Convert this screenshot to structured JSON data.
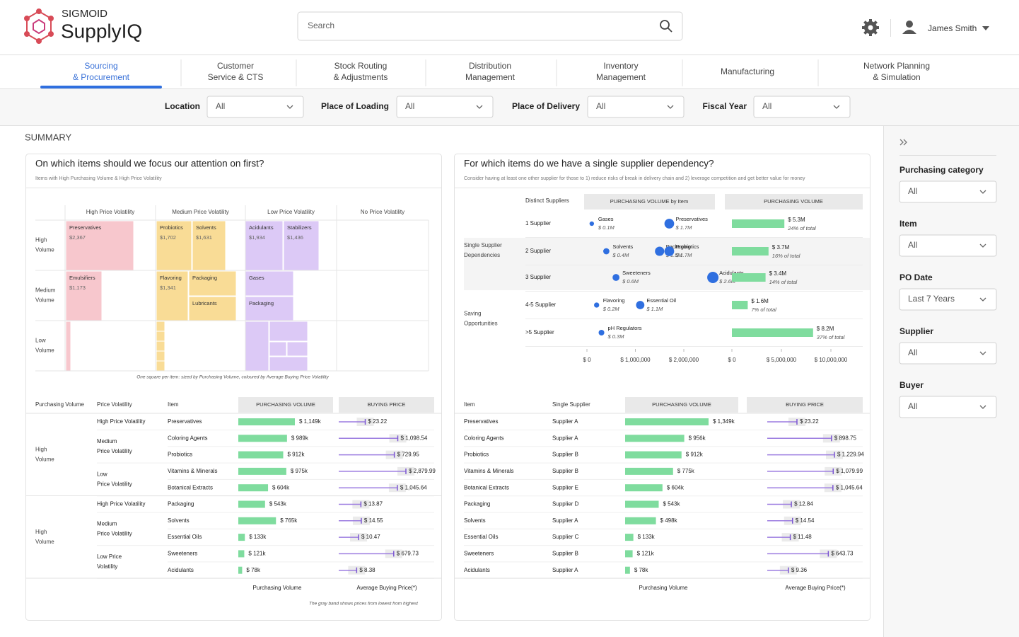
{
  "header": {
    "brand_company": "SIGMOID",
    "brand_product": "SupplyIQ",
    "search_placeholder": "Search",
    "user_name": "James Smith"
  },
  "tabs": [
    {
      "lines": [
        "Sourcing",
        "& Procurement"
      ],
      "active": true
    },
    {
      "lines": [
        "Customer",
        "Service & CTS"
      ]
    },
    {
      "lines": [
        "Stock Routing",
        "& Adjustments"
      ]
    },
    {
      "lines": [
        "Distribution",
        "Management"
      ]
    },
    {
      "lines": [
        "Inventory",
        "Management"
      ]
    },
    {
      "lines": [
        "Manufacturing"
      ]
    },
    {
      "lines": [
        "Network Planning",
        "& Simulation"
      ]
    }
  ],
  "filters": [
    {
      "label": "Location",
      "value": "All"
    },
    {
      "label": "Place of Loading",
      "value": "All"
    },
    {
      "label": "Place of Delivery",
      "value": "All"
    },
    {
      "label": "Fiscal Year",
      "value": "All"
    }
  ],
  "summary": {
    "title": "SUMMARY"
  },
  "focus_panel": {
    "title": "On which items should we focus our attention on first?",
    "subtitle": "Items with High Purchasing Volume & High Price Volatility",
    "matrix": {
      "columns": [
        "High Price Volatility",
        "Medium Price Volatility",
        "Low Price Volatility",
        "No Price Volatility"
      ],
      "rows": [
        [
          "High",
          "Volume"
        ],
        [
          "Medium",
          "Volume"
        ],
        [
          "Low",
          "Volume"
        ]
      ],
      "cells": [
        {
          "label": "Preservatives",
          "value": "$2,367"
        },
        {
          "label": "Probiotics",
          "value": "$1,702"
        },
        {
          "label": "Solvents",
          "value": "$1,631"
        },
        {
          "label": "Acidulants",
          "value": "$1,934"
        },
        {
          "label": "Stabilizers",
          "value": "$1,436"
        },
        {
          "label": "Emulsifiers",
          "value": "$1,173"
        },
        {
          "label": "Flavoring",
          "value": "$1,341"
        },
        {
          "label": "Packaging"
        },
        {
          "label": "Lubricants"
        },
        {
          "label": "Gases"
        },
        {
          "label": "Packaging"
        }
      ],
      "caption": "One square per item: sized by Purchasing Volume, coloured by Average Buying Price Volatility"
    },
    "table": {
      "headers": [
        "Purchasing Volume",
        "Price Volatility",
        "Item",
        "PURCHASING VOLUME",
        "BUYING PRICE"
      ],
      "groups": [
        {
          "label": [
            "High",
            "Volume"
          ],
          "volatilities": [
            {
              "label": [
                "High Price Volatility"
              ],
              "rows": [
                {
                  "item": "Preservatives",
                  "volume": 1149,
                  "volume_label": "$ 1,149k",
                  "price": 23.22,
                  "price_label": "$ 23.22"
                }
              ]
            },
            {
              "label": [
                "Medium",
                "Price Volatility"
              ],
              "rows": [
                {
                  "item": "Coloring Agents",
                  "volume": 989,
                  "volume_label": "$ 989k",
                  "price": 1098.54,
                  "price_label": "$ 1,098.54"
                },
                {
                  "item": "Probiotics",
                  "volume": 912,
                  "volume_label": "$ 912k",
                  "price": 729.95,
                  "price_label": "$ 729.95"
                }
              ]
            },
            {
              "label": [
                "Low",
                "Price Volatility"
              ],
              "rows": [
                {
                  "item": "Vitamins & Minerals",
                  "volume": 975,
                  "volume_label": "$ 975k",
                  "price": 2879.99,
                  "price_label": "$ 2,879.99"
                },
                {
                  "item": "Botanical Extracts",
                  "volume": 604,
                  "volume_label": "$ 604k",
                  "price": 1045.64,
                  "price_label": "$ 1,045.64"
                }
              ]
            }
          ]
        },
        {
          "label": [
            "High",
            "Volume"
          ],
          "volatilities": [
            {
              "label": [
                "High Price Volatility"
              ],
              "rows": [
                {
                  "item": "Packaging",
                  "volume": 543,
                  "volume_label": "$ 543k",
                  "price": 13.87,
                  "price_label": "$ 13.87"
                }
              ]
            },
            {
              "label": [
                "Medium",
                "Price Volatility"
              ],
              "rows": [
                {
                  "item": "Solvents",
                  "volume": 765,
                  "volume_label": "$ 765k",
                  "price": 14.55,
                  "price_label": "$ 14.55"
                },
                {
                  "item": "Essential Oils",
                  "volume": 133,
                  "volume_label": "$ 133k",
                  "price": 10.47,
                  "price_label": "$ 10.47"
                }
              ]
            },
            {
              "label": [
                "Low Price",
                "Volatility"
              ],
              "rows": [
                {
                  "item": "Sweeteners",
                  "volume": 121,
                  "volume_label": "$ 121k",
                  "price": 679.73,
                  "price_label": "$ 679.73"
                },
                {
                  "item": "Acidulants",
                  "volume": 78,
                  "volume_label": "$ 78k",
                  "price": 8.38,
                  "price_label": "$ 8.38"
                }
              ]
            }
          ]
        }
      ],
      "footer": [
        "Purchasing Volume",
        "Average Buying Price(*)"
      ],
      "note": "The gray band shows prices from lowest from highest"
    }
  },
  "supplier_panel": {
    "title": "For which items do we have a single supplier dependency?",
    "subtitle": "Consider having at least one other supplier for those to 1) reduce risks of break in delivery chain and 2) leverage competition and get better value for money",
    "dependency": {
      "headers": [
        "Distinct Suppliers",
        "PURCHASING VOLUME by Item",
        "PURCHASING VOLUME"
      ],
      "sections": [
        {
          "label": [
            "Single Supplier",
            "Dependencies"
          ],
          "rows": [
            {
              "suppliers": "1 Supplier",
              "items": [
                {
                  "name": "Gases",
                  "value": 100000,
                  "label": "$ 0.1M"
                },
                {
                  "name": "Preservatives",
                  "value": 1700000,
                  "label": "$ 1.7M"
                }
              ],
              "volume": 5300000,
              "volume_label": "$ 5.3M",
              "share": "24% of total"
            },
            {
              "suppliers": "2 Supplier",
              "items": [
                {
                  "name": "Solvents",
                  "value": 400000,
                  "label": "$ 0.4M"
                },
                {
                  "name": "Packaging",
                  "value": 1500000,
                  "label": "$ 1.5M"
                },
                {
                  "name": "Probiotics",
                  "value": 1700000,
                  "label": "$ 1.7M"
                }
              ],
              "volume": 3700000,
              "volume_label": "$ 3.7M",
              "share": "16% of total"
            },
            {
              "suppliers": "3 Supplier",
              "items": [
                {
                  "name": "Sweeteners",
                  "value": 600000,
                  "label": "$ 0.6M"
                },
                {
                  "name": "Acidulants",
                  "value": 2600000,
                  "label": "$ 2.6M"
                }
              ],
              "volume": 3400000,
              "volume_label": "$ 3.4M",
              "share": "14% of total"
            }
          ]
        },
        {
          "label": [
            "Saving",
            "Opportunities"
          ],
          "rows": [
            {
              "suppliers": "4-5 Supplier",
              "items": [
                {
                  "name": "Flavoring",
                  "value": 200000,
                  "label": "$ 0.2M"
                },
                {
                  "name": "Essential Oil",
                  "value": 1100000,
                  "label": "$ 1.1M"
                }
              ],
              "volume": 1600000,
              "volume_label": "$ 1.6M",
              "share": "7% of total"
            },
            {
              "suppliers": ">5 Supplier",
              "items": [
                {
                  "name": "pH Regulators",
                  "value": 300000,
                  "label": "$ 0.3M"
                }
              ],
              "volume": 8200000,
              "volume_label": "$ 8.2M",
              "share": "37% of total"
            }
          ]
        }
      ],
      "dot_ticks": [
        {
          "value": 0,
          "label": "$ 0"
        },
        {
          "value": 1000000,
          "label": "$ 1,000,000"
        },
        {
          "value": 2000000,
          "label": "$ 2,000,000"
        }
      ],
      "bar_ticks": [
        {
          "value": 0,
          "label": "$ 0"
        },
        {
          "value": 5000000,
          "label": "$ 5,000,000"
        },
        {
          "value": 10000000,
          "label": "$ 10,000,000"
        }
      ]
    },
    "table": {
      "headers": [
        "Item",
        "Single Supplier",
        "PURCHASING VOLUME",
        "BUYING PRICE"
      ],
      "rows": [
        {
          "item": "Preservatives",
          "supplier": "Supplier A",
          "volume": 1349,
          "volume_label": "$ 1,349k",
          "price": 23.22,
          "price_label": "$ 23.22"
        },
        {
          "item": "Coloring Agents",
          "supplier": "Supplier A",
          "volume": 956,
          "volume_label": "$ 956k",
          "price": 898.75,
          "price_label": "$ 898.75"
        },
        {
          "item": "Probiotics",
          "supplier": "Supplier B",
          "volume": 912,
          "volume_label": "$ 912k",
          "price": 1229.94,
          "price_label": "$ 1,229.94"
        },
        {
          "item": "Vitamins & Minerals",
          "supplier": "Supplier B",
          "volume": 775,
          "volume_label": "$ 775k",
          "price": 1079.99,
          "price_label": "$ 1,079.99"
        },
        {
          "item": "Botanical Extracts",
          "supplier": "Supplier E",
          "volume": 604,
          "volume_label": "$ 604k",
          "price": 1045.64,
          "price_label": "$ 1,045.64"
        },
        {
          "item": "Packaging",
          "supplier": "Supplier D",
          "volume": 543,
          "volume_label": "$ 543k",
          "price": 12.84,
          "price_label": "$ 12.84"
        },
        {
          "item": "Solvents",
          "supplier": "Supplier A",
          "volume": 498,
          "volume_label": "$ 498k",
          "price": 14.54,
          "price_label": "$ 14.54"
        },
        {
          "item": "Essential Oils",
          "supplier": "Supplier C",
          "volume": 133,
          "volume_label": "$ 133k",
          "price": 11.48,
          "price_label": "$ 11.48"
        },
        {
          "item": "Sweeteners",
          "supplier": "Supplier B",
          "volume": 121,
          "volume_label": "$ 121k",
          "price": 643.73,
          "price_label": "$ 643.73"
        },
        {
          "item": "Acidulants",
          "supplier": "Supplier A",
          "volume": 78,
          "volume_label": "$ 78k",
          "price": 9.36,
          "price_label": "$ 9.36"
        }
      ],
      "footer": [
        "Purchasing Volume",
        "Average Buying Price(*)"
      ]
    }
  },
  "sidebar": {
    "filters": [
      {
        "label": "Purchasing category",
        "value": "All"
      },
      {
        "label": "Item",
        "value": "All"
      },
      {
        "label": "PO Date",
        "value": "Last 7 Years"
      },
      {
        "label": "Supplier",
        "value": "All"
      },
      {
        "label": "Buyer",
        "value": "All"
      }
    ]
  }
}
